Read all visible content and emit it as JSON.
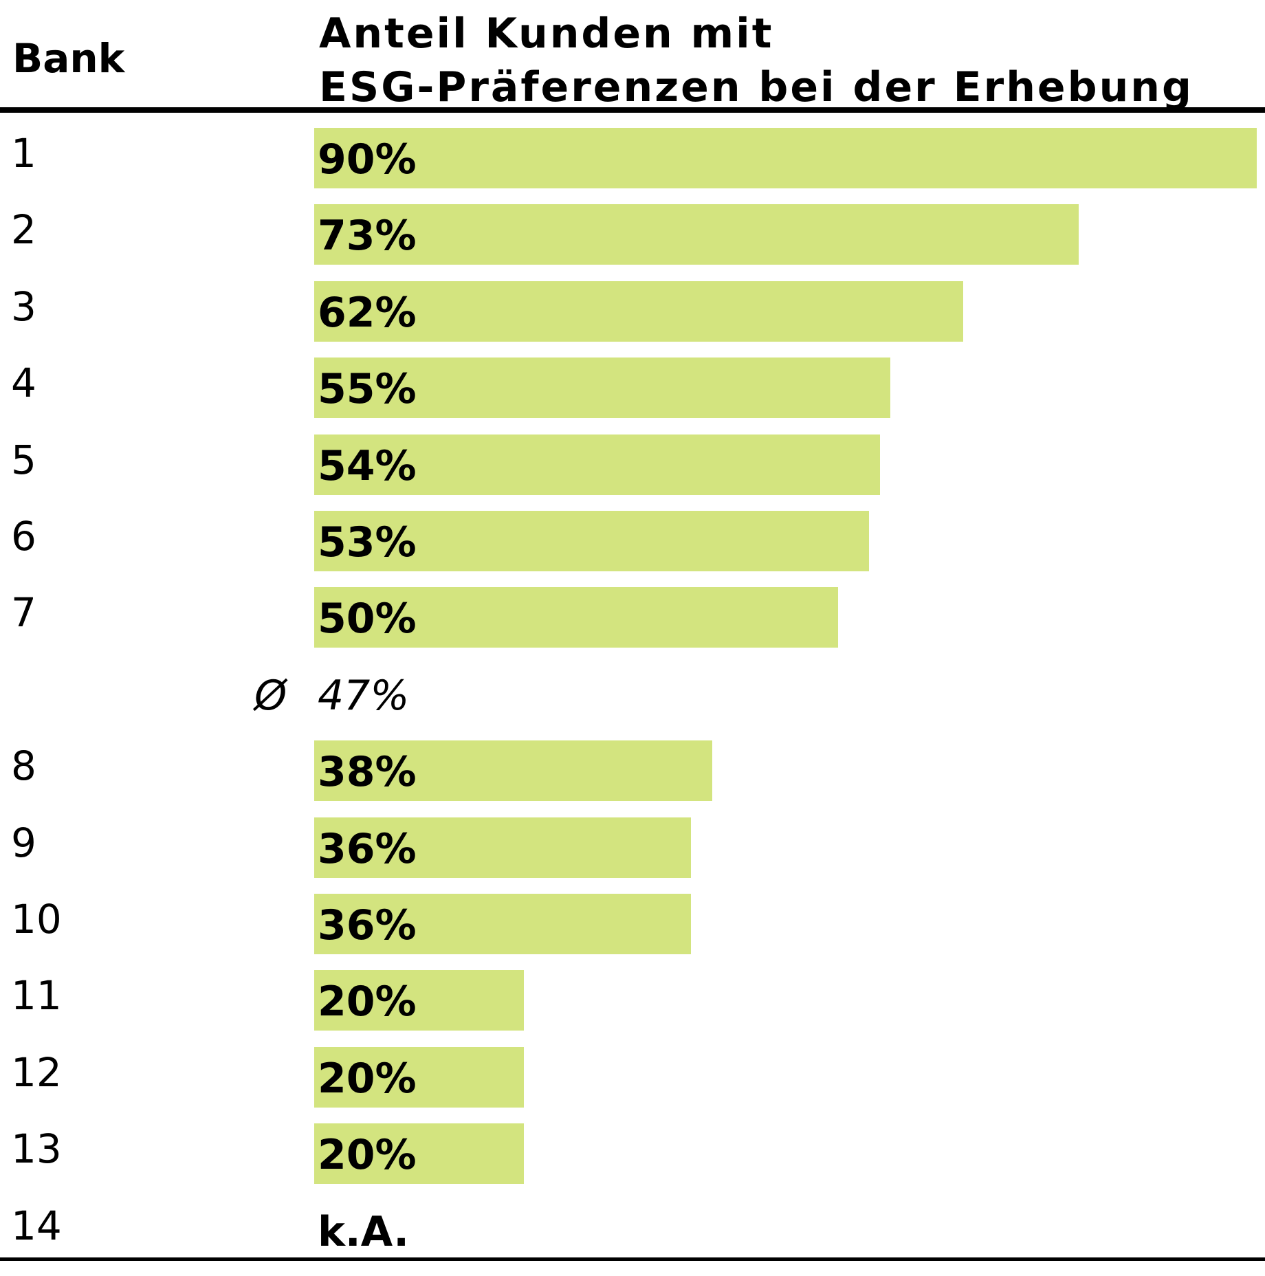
{
  "header": {
    "bank_label": "Bank",
    "share_label_line1": "Anteil Kunden mit",
    "share_label_line2": "ESG-Präferenzen bei der Erhebung"
  },
  "colors": {
    "bar": "#d3e47f",
    "rule": "#000000"
  },
  "chart_data": {
    "type": "bar",
    "orientation": "horizontal",
    "title": "Anteil Kunden mit ESG-Präferenzen bei der Erhebung",
    "xlabel": "",
    "ylabel": "Bank",
    "xlim": [
      0,
      90
    ],
    "grid": false,
    "legend": "none",
    "categories": [
      "1",
      "2",
      "3",
      "4",
      "5",
      "6",
      "7",
      "8",
      "9",
      "10",
      "11",
      "12",
      "13",
      "14"
    ],
    "values": [
      90,
      73,
      62,
      55,
      54,
      53,
      50,
      38,
      36,
      36,
      20,
      20,
      20,
      null
    ],
    "value_labels": [
      "90%",
      "73%",
      "62%",
      "55%",
      "54%",
      "53%",
      "50%",
      "38%",
      "36%",
      "36%",
      "20%",
      "20%",
      "20%",
      "k.A."
    ],
    "average": {
      "symbol": "Ø",
      "value": 47,
      "label": "47%",
      "after_category": "7"
    }
  }
}
